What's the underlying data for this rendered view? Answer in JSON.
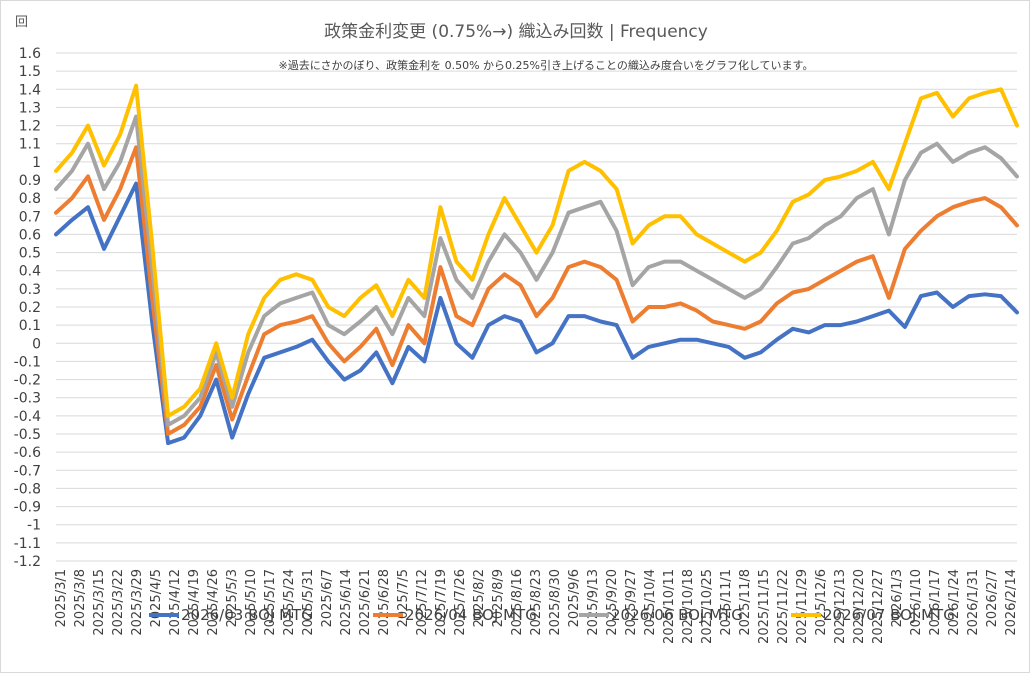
{
  "chart_data": {
    "type": "line",
    "title": "政策金利変更 (0.75%→) 織込み回数 | Frequency",
    "subtitle": "※過去にさかのぼり、政策金利を 0.50% から0.25%引き上げることの織込み度合いをグラフ化しています。",
    "ylabel": "回",
    "xlabel": "",
    "ylim": [
      -1.2,
      1.6
    ],
    "y_ticks": [
      1.6,
      1.5,
      1.4,
      1.3,
      1.2,
      1.1,
      1,
      0.9,
      0.8,
      0.7,
      0.6,
      0.5,
      0.4,
      0.3,
      0.2,
      0.1,
      0,
      -0.1,
      -0.2,
      -0.3,
      -0.4,
      -0.5,
      -0.6,
      -0.7,
      -0.8,
      -0.9,
      -1,
      -1.1,
      -1.2
    ],
    "y_tick_labels": [
      "1.6",
      "1.5",
      "1.4",
      "1.3",
      "1.2",
      "1.1",
      "1",
      "0.9",
      "0.8",
      "0.7",
      "0.6",
      "0.5",
      "0.4",
      "0.3",
      "0.2",
      "0.1",
      "0",
      "-0.1",
      "-0.2",
      "-0.3",
      "-0.4",
      "-0.5",
      "-0.6",
      "-0.7",
      "-0.8",
      "-0.9",
      "-1",
      "-1.1",
      "-1.2"
    ],
    "x_tick_labels": [
      "2025/3/1",
      "2025/3/8",
      "2025/3/15",
      "2025/3/22",
      "2025/3/29",
      "2025/4/5",
      "2025/4/12",
      "2025/4/19",
      "2025/4/26",
      "2025/5/3",
      "2025/5/10",
      "2025/5/17",
      "2025/5/24",
      "2025/5/31",
      "2025/6/7",
      "2025/6/14",
      "2025/6/21",
      "2025/6/28",
      "2025/7/5",
      "2025/7/12",
      "2025/7/19",
      "2025/7/26",
      "2025/8/2",
      "2025/8/9",
      "2025/8/16",
      "2025/8/23",
      "2025/8/30",
      "2025/9/6",
      "2025/9/13",
      "2025/9/20",
      "2025/9/27",
      "2025/10/4",
      "2025/10/11",
      "2025/10/18",
      "2025/10/25",
      "2025/11/1",
      "2025/11/8",
      "2025/11/15",
      "2025/11/22",
      "2025/11/29",
      "2025/12/6",
      "2025/12/13",
      "2025/12/20",
      "2025/12/27",
      "2026/1/3",
      "2026/1/10",
      "2026/1/17",
      "2026/1/24",
      "2026/1/31",
      "2026/2/7",
      "2026/2/14"
    ],
    "grid": true,
    "legend_position": "bottom",
    "series": [
      {
        "name": "2026/03 BOJ MTG",
        "color": "#4472C4",
        "values": [
          0.6,
          0.68,
          0.75,
          0.52,
          0.7,
          0.88,
          0.12,
          -0.55,
          -0.52,
          -0.4,
          -0.2,
          -0.52,
          -0.28,
          -0.08,
          -0.05,
          -0.02,
          0.02,
          -0.1,
          -0.2,
          -0.15,
          -0.05,
          -0.22,
          -0.02,
          -0.1,
          0.25,
          0.0,
          -0.08,
          0.1,
          0.15,
          0.12,
          -0.05,
          0.0,
          0.15,
          0.15,
          0.12,
          0.1,
          -0.08,
          -0.02,
          0.0,
          0.02,
          0.02,
          0.0,
          -0.02,
          -0.08,
          -0.05,
          0.02,
          0.08,
          0.06,
          0.1,
          0.1,
          0.12,
          0.15,
          0.18,
          0.09,
          0.26,
          0.28,
          0.2,
          0.26,
          0.27,
          0.26,
          0.17
        ]
      },
      {
        "name": "2026/04 BOJ MTG",
        "color": "#ED7D31",
        "values": [
          0.72,
          0.8,
          0.92,
          0.68,
          0.85,
          1.08,
          0.25,
          -0.5,
          -0.45,
          -0.35,
          -0.12,
          -0.42,
          -0.18,
          0.05,
          0.1,
          0.12,
          0.15,
          0.0,
          -0.1,
          -0.02,
          0.08,
          -0.12,
          0.1,
          0.0,
          0.42,
          0.15,
          0.1,
          0.3,
          0.38,
          0.32,
          0.15,
          0.25,
          0.42,
          0.45,
          0.42,
          0.35,
          0.12,
          0.2,
          0.2,
          0.22,
          0.18,
          0.12,
          0.1,
          0.08,
          0.12,
          0.22,
          0.28,
          0.3,
          0.35,
          0.4,
          0.45,
          0.48,
          0.25,
          0.52,
          0.62,
          0.7,
          0.75,
          0.78,
          0.8,
          0.75,
          0.65
        ]
      },
      {
        "name": "2026/06 BOJ MTG",
        "color": "#A5A5A5",
        "values": [
          0.85,
          0.95,
          1.1,
          0.85,
          1.0,
          1.25,
          0.42,
          -0.45,
          -0.4,
          -0.3,
          -0.05,
          -0.35,
          -0.05,
          0.15,
          0.22,
          0.25,
          0.28,
          0.1,
          0.05,
          0.12,
          0.2,
          0.05,
          0.25,
          0.15,
          0.58,
          0.35,
          0.25,
          0.45,
          0.6,
          0.5,
          0.35,
          0.5,
          0.72,
          0.75,
          0.78,
          0.62,
          0.32,
          0.42,
          0.45,
          0.45,
          0.4,
          0.35,
          0.3,
          0.25,
          0.3,
          0.42,
          0.55,
          0.58,
          0.65,
          0.7,
          0.8,
          0.85,
          0.6,
          0.9,
          1.05,
          1.1,
          1.0,
          1.05,
          1.08,
          1.02,
          0.92
        ]
      },
      {
        "name": "2026/07 BOJ MTG",
        "color": "#FFC000",
        "values": [
          0.95,
          1.05,
          1.2,
          0.98,
          1.15,
          1.42,
          0.55,
          -0.4,
          -0.35,
          -0.25,
          0.0,
          -0.3,
          0.05,
          0.25,
          0.35,
          0.38,
          0.35,
          0.2,
          0.15,
          0.25,
          0.32,
          0.15,
          0.35,
          0.25,
          0.75,
          0.45,
          0.35,
          0.6,
          0.8,
          0.65,
          0.5,
          0.65,
          0.95,
          1.0,
          0.95,
          0.85,
          0.55,
          0.65,
          0.7,
          0.7,
          0.6,
          0.55,
          0.5,
          0.45,
          0.5,
          0.62,
          0.78,
          0.82,
          0.9,
          0.92,
          0.95,
          1.0,
          0.85,
          1.1,
          1.35,
          1.38,
          1.25,
          1.35,
          1.38,
          1.4,
          1.2
        ]
      }
    ]
  }
}
